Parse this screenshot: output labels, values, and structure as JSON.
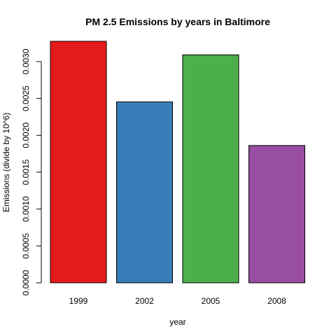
{
  "chart_data": {
    "type": "bar",
    "title": "PM 2.5 Emissions by years in Baltimore",
    "xlabel": "year",
    "ylabel": "Emissions (divide by 10^6)",
    "categories": [
      "1999",
      "2002",
      "2005",
      "2008"
    ],
    "values": [
      0.003275,
      0.002453,
      0.003091,
      0.001862
    ],
    "colors": [
      "#E41A1C",
      "#377EB8",
      "#4DAF4A",
      "#984EA3"
    ],
    "ylim": [
      0,
      0.003275
    ],
    "yticks": [
      0,
      0.0005,
      0.001,
      0.0015,
      0.002,
      0.0025,
      0.003
    ],
    "ytick_labels": [
      "0.0000",
      "0.0005",
      "0.0010",
      "0.0015",
      "0.0020",
      "0.0025",
      "0.0030"
    ],
    "grid": false,
    "legend": "none"
  }
}
